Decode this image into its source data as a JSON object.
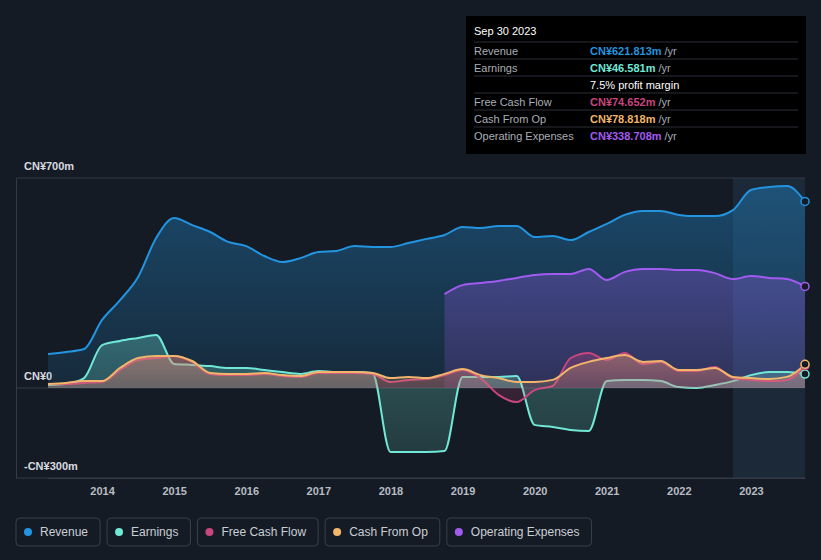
{
  "chart_data": {
    "type": "area",
    "x": [
      2013.25,
      2013.5,
      2013.75,
      2014,
      2014.25,
      2014.5,
      2014.75,
      2015,
      2015.25,
      2015.5,
      2015.75,
      2016,
      2016.25,
      2016.5,
      2016.75,
      2017,
      2017.25,
      2017.5,
      2017.75,
      2018,
      2018.25,
      2018.5,
      2018.75,
      2019,
      2019.25,
      2019.5,
      2019.75,
      2020,
      2020.25,
      2020.5,
      2020.75,
      2021,
      2021.25,
      2021.5,
      2021.75,
      2022,
      2022.25,
      2022.5,
      2022.75,
      2023,
      2023.25,
      2023.5,
      2023.75
    ],
    "xlim": [
      2013.25,
      2023.75
    ],
    "xticks": [
      2014,
      2015,
      2016,
      2017,
      2018,
      2019,
      2020,
      2021,
      2022,
      2023
    ],
    "ylim": [
      -300,
      700
    ],
    "yticks": [
      {
        "value": -300,
        "label": "-CN¥300m"
      },
      {
        "value": 0,
        "label": "CN¥0"
      },
      {
        "value": 700,
        "label": "CN¥700m"
      }
    ],
    "grid": true,
    "legend": "bottom-left",
    "highlight": [
      2022.75,
      2023.75
    ],
    "series": [
      {
        "name": "Revenue",
        "color": "#2394df",
        "values": [
          113,
          120,
          130,
          227,
          293,
          370,
          500,
          567,
          543,
          520,
          487,
          473,
          440,
          420,
          433,
          453,
          457,
          473,
          470,
          470,
          483,
          497,
          510,
          537,
          533,
          540,
          540,
          503,
          507,
          493,
          520,
          547,
          577,
          590,
          590,
          577,
          573,
          573,
          593,
          660,
          670,
          673,
          621.813
        ]
      },
      {
        "name": "Earnings",
        "color": "#71e7d6",
        "values": [
          10,
          13,
          33,
          143,
          157,
          167,
          177,
          80,
          77,
          73,
          67,
          67,
          60,
          53,
          47,
          57,
          53,
          53,
          50,
          -213,
          -213,
          -213,
          -210,
          37,
          37,
          37,
          40,
          -123,
          -130,
          -140,
          -143,
          23,
          27,
          27,
          23,
          3,
          0,
          10,
          23,
          43,
          53,
          53,
          46.581
        ]
      },
      {
        "name": "Free Cash Flow",
        "color": "#c9457f",
        "values": [
          13,
          13,
          17,
          20,
          60,
          93,
          100,
          107,
          87,
          47,
          43,
          43,
          47,
          40,
          37,
          50,
          50,
          50,
          47,
          20,
          27,
          30,
          43,
          60,
          33,
          -23,
          -47,
          -7,
          7,
          100,
          117,
          93,
          117,
          80,
          87,
          57,
          57,
          70,
          33,
          27,
          23,
          27,
          74.652
        ]
      },
      {
        "name": "Cash From Op",
        "color": "#f1b56c",
        "values": [
          13,
          17,
          23,
          23,
          67,
          100,
          107,
          107,
          90,
          50,
          47,
          47,
          50,
          43,
          40,
          53,
          53,
          53,
          50,
          33,
          37,
          33,
          47,
          63,
          43,
          33,
          20,
          20,
          27,
          67,
          87,
          100,
          110,
          87,
          90,
          60,
          60,
          67,
          37,
          33,
          30,
          37,
          78.818
        ]
      },
      {
        "name": "Operating Expenses",
        "color": "#a25bf0",
        "values": [
          null,
          null,
          null,
          null,
          null,
          null,
          null,
          null,
          null,
          null,
          null,
          null,
          null,
          null,
          null,
          null,
          null,
          null,
          null,
          null,
          null,
          null,
          313,
          343,
          350,
          357,
          367,
          377,
          380,
          380,
          397,
          360,
          387,
          397,
          397,
          393,
          393,
          383,
          363,
          373,
          367,
          363,
          338.708
        ]
      }
    ],
    "tooltip": {
      "title": "Sep 30 2023",
      "rows": [
        {
          "label": "Revenue",
          "value": "CN¥621.813m",
          "unit": "/yr"
        },
        {
          "label": "Earnings",
          "value": "CN¥46.581m",
          "unit": "/yr"
        },
        {
          "note": "7.5% profit margin"
        },
        {
          "label": "Free Cash Flow",
          "value": "CN¥74.652m",
          "unit": "/yr"
        },
        {
          "label": "Cash From Op",
          "value": "CN¥78.818m",
          "unit": "/yr"
        },
        {
          "label": "Operating Expenses",
          "value": "CN¥338.708m",
          "unit": "/yr"
        }
      ]
    }
  }
}
